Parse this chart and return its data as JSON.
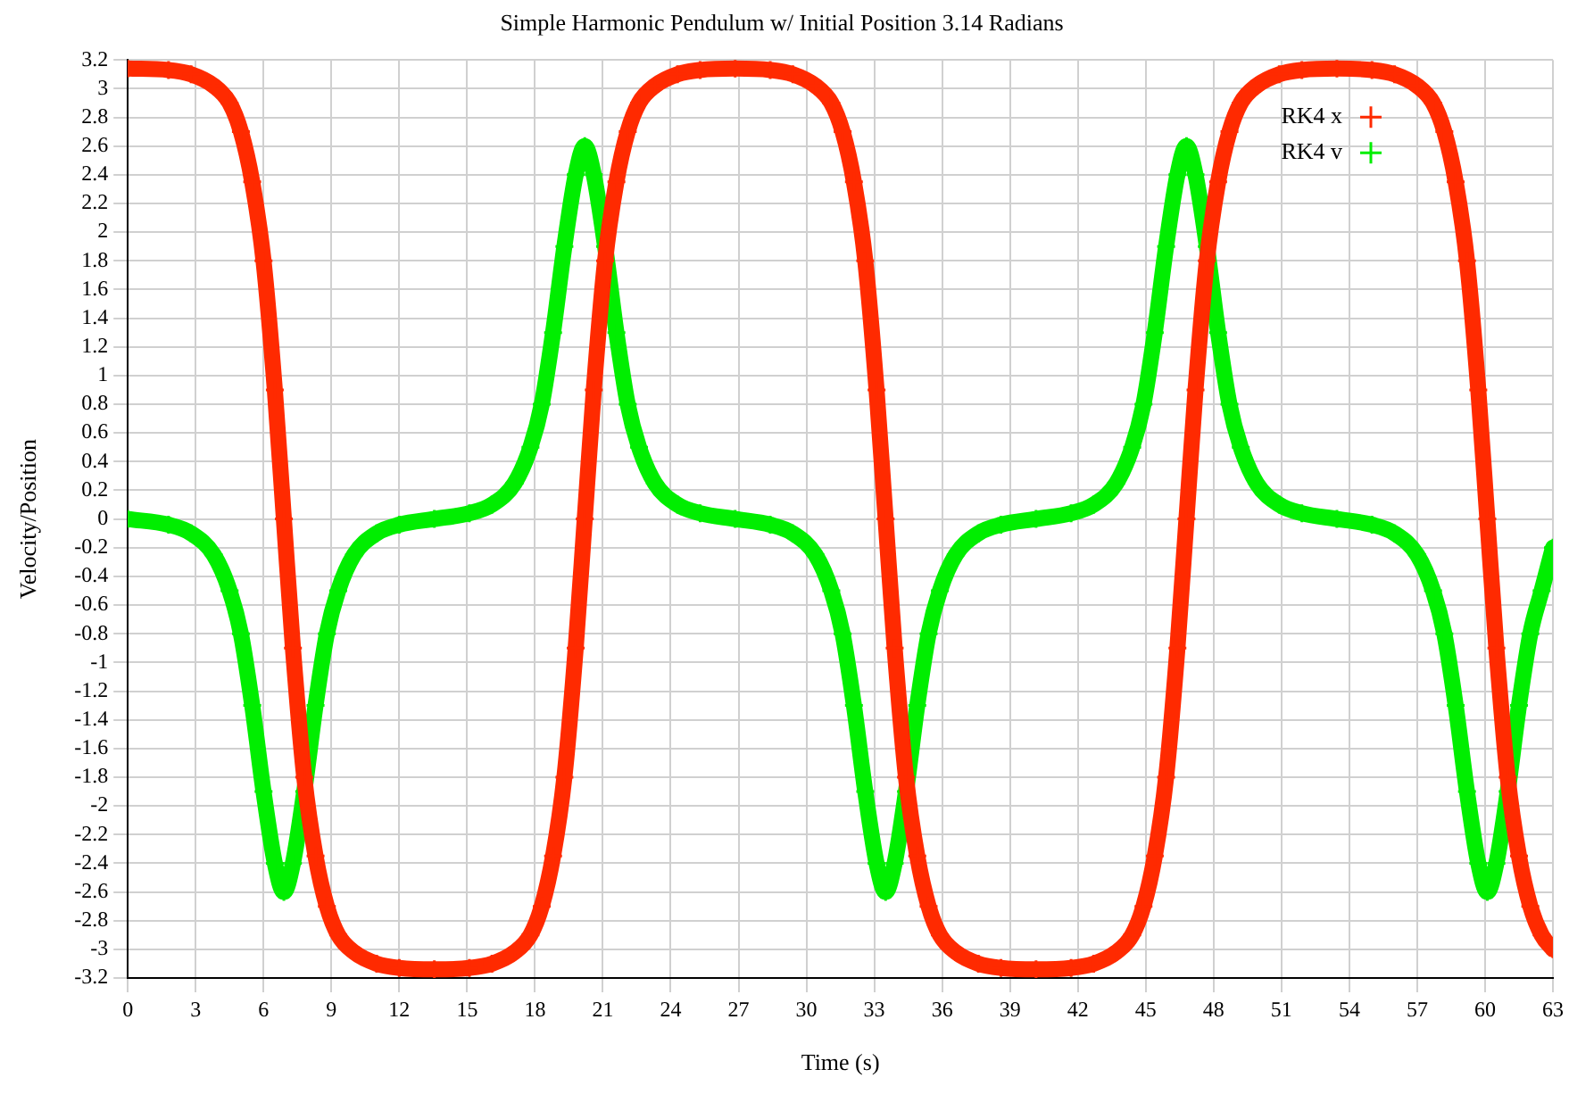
{
  "chart_data": {
    "type": "line",
    "title": "Simple Harmonic Pendulum w/ Initial Position 3.14 Radians",
    "xlabel": "Time (s)",
    "ylabel": "Velocity/Position",
    "x": [
      0,
      1.8,
      2.8,
      3.8,
      4.5,
      5.0,
      5.5,
      6.0,
      6.5,
      6.9,
      7.3,
      7.8,
      8.3,
      8.8,
      9.3,
      10.0,
      11.0,
      12.0,
      13.55,
      15.1,
      16.1,
      17.1,
      17.8,
      18.3,
      18.8,
      19.3,
      19.8,
      20.2,
      20.6,
      21.1,
      21.6,
      22.1,
      22.6,
      23.3,
      24.3,
      25.3,
      26.85,
      28.4,
      29.4,
      30.4,
      31.1,
      31.6,
      32.1,
      32.6,
      33.1,
      33.5,
      33.9,
      34.4,
      34.9,
      35.4,
      35.9,
      36.6,
      37.6,
      38.6,
      40.15,
      41.7,
      42.7,
      43.7,
      44.4,
      44.9,
      45.4,
      45.9,
      46.4,
      46.8,
      47.2,
      47.7,
      48.2,
      48.7,
      49.2,
      49.9,
      50.9,
      51.9,
      53.45,
      55.0,
      56.0,
      57.0,
      57.7,
      58.2,
      58.7,
      59.2,
      59.7,
      60.1,
      60.5,
      61.0,
      61.5,
      62.0,
      62.5,
      63.0
    ],
    "series": [
      {
        "name": "RK4 x",
        "color": "#ff2a00",
        "marker": "cross",
        "values": [
          3.14,
          3.13,
          3.1,
          3.02,
          2.9,
          2.7,
          2.35,
          1.8,
          0.9,
          0,
          -0.9,
          -1.8,
          -2.35,
          -2.7,
          -2.9,
          -3.02,
          -3.1,
          -3.13,
          -3.14,
          -3.13,
          -3.1,
          -3.02,
          -2.9,
          -2.7,
          -2.35,
          -1.8,
          -0.9,
          0,
          0.9,
          1.8,
          2.35,
          2.7,
          2.9,
          3.02,
          3.1,
          3.13,
          3.14,
          3.13,
          3.1,
          3.02,
          2.9,
          2.7,
          2.35,
          1.8,
          0.9,
          0,
          -0.9,
          -1.8,
          -2.35,
          -2.7,
          -2.9,
          -3.02,
          -3.1,
          -3.13,
          -3.14,
          -3.13,
          -3.1,
          -3.02,
          -2.9,
          -2.7,
          -2.35,
          -1.8,
          -0.9,
          0,
          0.9,
          1.8,
          2.35,
          2.7,
          2.9,
          3.02,
          3.1,
          3.13,
          3.14,
          3.13,
          3.1,
          3.02,
          2.9,
          2.7,
          2.35,
          1.8,
          0.9,
          0,
          -0.9,
          -1.8,
          -2.35,
          -2.7,
          -2.9,
          -3.0
        ]
      },
      {
        "name": "RK4 v",
        "color": "#00ee00",
        "marker": "cross",
        "values": [
          0,
          -0.04,
          -0.1,
          -0.25,
          -0.5,
          -0.8,
          -1.3,
          -1.9,
          -2.4,
          -2.6,
          -2.4,
          -1.9,
          -1.3,
          -0.8,
          -0.5,
          -0.25,
          -0.1,
          -0.04,
          0,
          0.04,
          0.1,
          0.25,
          0.5,
          0.8,
          1.3,
          1.9,
          2.4,
          2.6,
          2.4,
          1.9,
          1.3,
          0.8,
          0.5,
          0.25,
          0.1,
          0.04,
          0,
          -0.04,
          -0.1,
          -0.25,
          -0.5,
          -0.8,
          -1.3,
          -1.9,
          -2.4,
          -2.6,
          -2.4,
          -1.9,
          -1.3,
          -0.8,
          -0.5,
          -0.25,
          -0.1,
          -0.04,
          0,
          0.04,
          0.1,
          0.25,
          0.5,
          0.8,
          1.3,
          1.9,
          2.4,
          2.6,
          2.4,
          1.9,
          1.3,
          0.8,
          0.5,
          0.25,
          0.1,
          0.04,
          0,
          -0.04,
          -0.1,
          -0.25,
          -0.5,
          -0.8,
          -1.3,
          -1.9,
          -2.4,
          -2.6,
          -2.4,
          -1.9,
          -1.3,
          -0.8,
          -0.5,
          -0.2
        ]
      }
    ],
    "xlim": [
      0,
      63
    ],
    "xticks": [
      0,
      3,
      6,
      9,
      12,
      15,
      18,
      21,
      24,
      27,
      30,
      33,
      36,
      39,
      42,
      45,
      48,
      51,
      54,
      57,
      60,
      63
    ],
    "ylim": [
      -3.2,
      3.2
    ],
    "yticks": [
      -3.2,
      -3,
      -2.8,
      -2.6,
      -2.4,
      -2.2,
      -2,
      -1.8,
      -1.6,
      -1.4,
      -1.2,
      -1,
      -0.8,
      -0.6,
      -0.4,
      -0.2,
      0,
      0.2,
      0.4,
      0.6,
      0.8,
      1,
      1.2,
      1.4,
      1.6,
      1.8,
      2,
      2.2,
      2.4,
      2.6,
      2.8,
      3,
      3.2
    ],
    "grid": true,
    "legend": "top right",
    "line_style": "solid"
  }
}
